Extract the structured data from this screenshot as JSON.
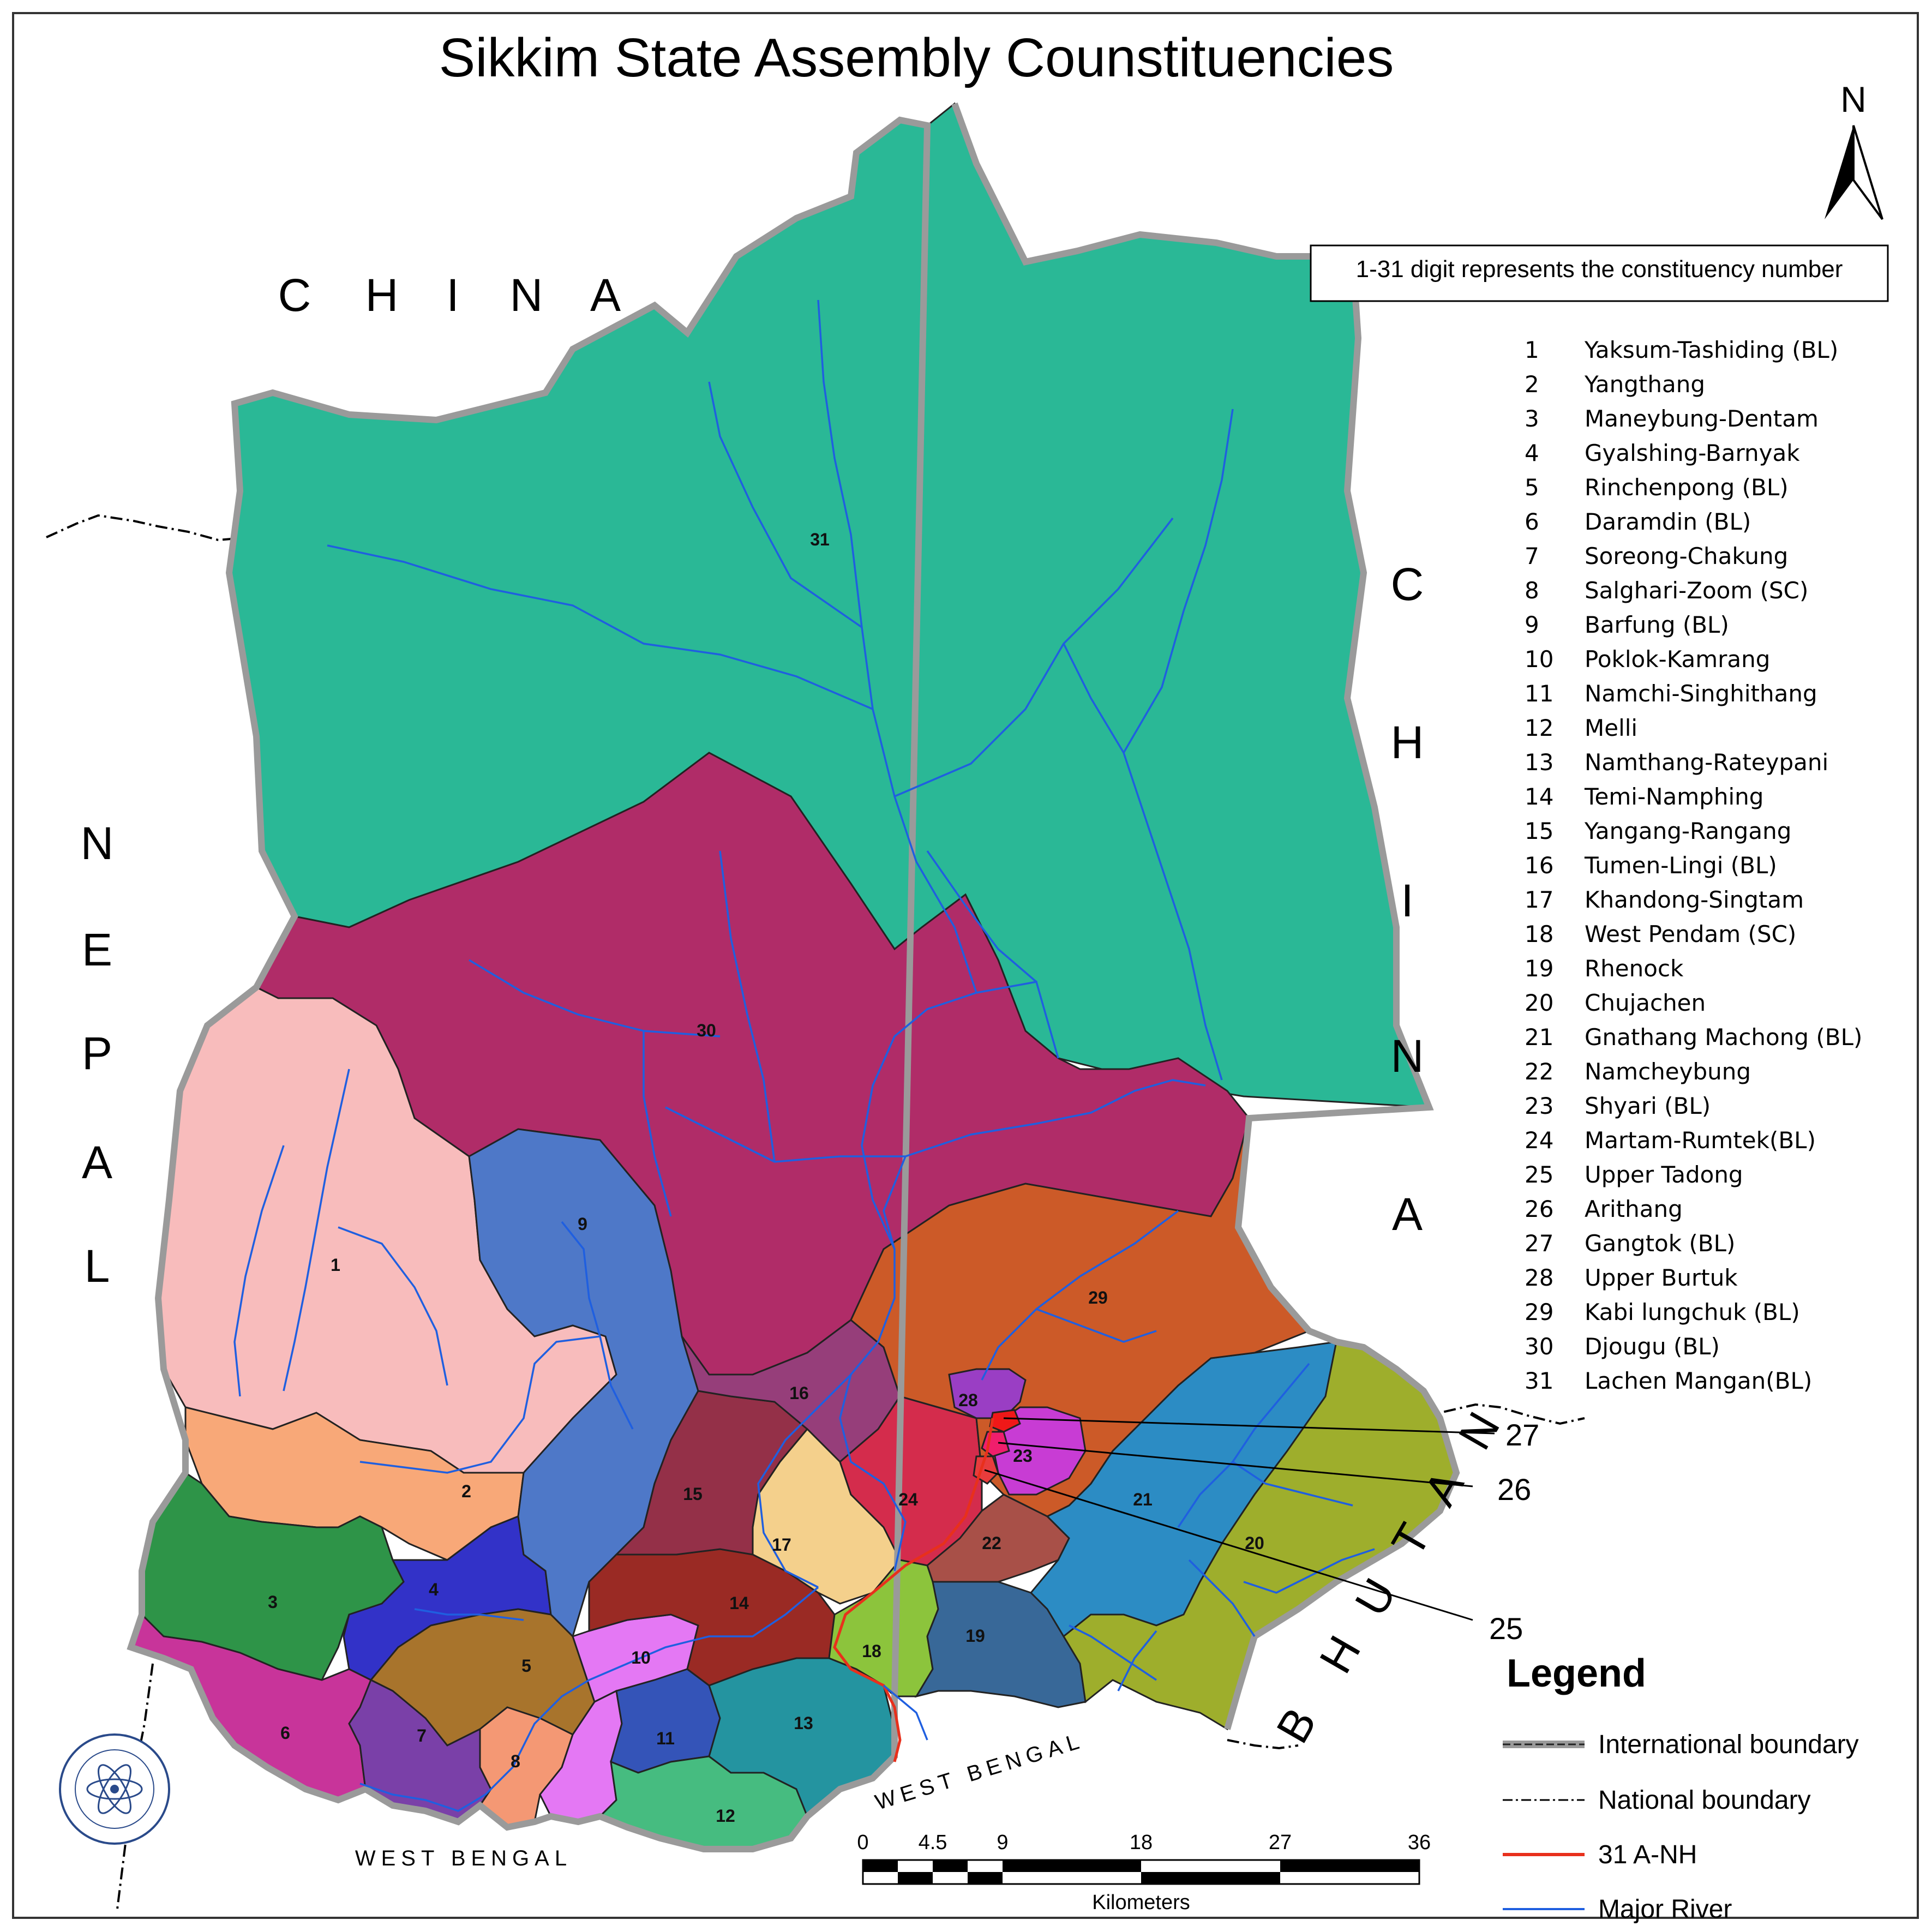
{
  "title": "Sikkim State Assembly Counstituencies",
  "note": "1-31 digit represents the constituency number",
  "north_label": "N",
  "countries": {
    "china_top": [
      "C",
      "H",
      "I",
      "N",
      "A"
    ],
    "china_right": [
      "C",
      "H",
      "I",
      "N",
      "A"
    ],
    "nepal": [
      "N",
      "E",
      "P",
      "A",
      "L"
    ],
    "bhutan": [
      "B",
      "H",
      "U",
      "T",
      "A",
      "N"
    ]
  },
  "west_bengal_labels": [
    "WEST BENGAL",
    "WEST BENGAL"
  ],
  "constituencies": [
    {
      "no": "1",
      "name": "Yaksum-Tashiding (BL)",
      "color": "#f8bcbc"
    },
    {
      "no": "2",
      "name": "Yangthang",
      "color": "#f8a878"
    },
    {
      "no": "3",
      "name": "Maneybung-Dentam",
      "color": "#2e9448"
    },
    {
      "no": "4",
      "name": "Gyalshing-Barnyak",
      "color": "#3232c8"
    },
    {
      "no": "5",
      "name": "Rinchenpong (BL)",
      "color": "#a8742c"
    },
    {
      "no": "6",
      "name": "Daramdin (BL)",
      "color": "#c8349a"
    },
    {
      "no": "7",
      "name": "Soreong-Chakung",
      "color": "#7a40a8"
    },
    {
      "no": "8",
      "name": "Salghari-Zoom (SC)",
      "color": "#f49874"
    },
    {
      "no": "9",
      "name": "Barfung (BL)",
      "color": "#4e78c8"
    },
    {
      "no": "10",
      "name": "Poklok-Kamrang",
      "color": "#e478f4"
    },
    {
      "no": "11",
      "name": "Namchi-Singhithang",
      "color": "#3454b8"
    },
    {
      "no": "12",
      "name": "Melli",
      "color": "#46bc80"
    },
    {
      "no": "13",
      "name": "Namthang-Rateypani",
      "color": "#2494a0"
    },
    {
      "no": "14",
      "name": "Temi-Namphing",
      "color": "#9a2a24"
    },
    {
      "no": "15",
      "name": "Yangang-Rangang",
      "color": "#943048"
    },
    {
      "no": "16",
      "name": "Tumen-Lingi (BL)",
      "color": "#963e7a"
    },
    {
      "no": "17",
      "name": "Khandong-Singtam",
      "color": "#f4d08c"
    },
    {
      "no": "18",
      "name": "West Pendam (SC)",
      "color": "#8cc43c"
    },
    {
      "no": "19",
      "name": "Rhenock",
      "color": "#386898"
    },
    {
      "no": "20",
      "name": "Chujachen",
      "color": "#9eae2c"
    },
    {
      "no": "21",
      "name": "Gnathang Machong (BL)",
      "color": "#2c8cc4"
    },
    {
      "no": "22",
      "name": "Namcheybung",
      "color": "#a85048"
    },
    {
      "no": "23",
      "name": "Shyari (BL)",
      "color": "#c83cd4"
    },
    {
      "no": "24",
      "name": "Martam-Rumtek(BL)",
      "color": "#d42c4c"
    },
    {
      "no": "25",
      "name": "Upper Tadong",
      "color": "#e83c3c"
    },
    {
      "no": "26",
      "name": "Arithang",
      "color": "#f01e6c"
    },
    {
      "no": "27",
      "name": "Gangtok (BL)",
      "color": "#f01818"
    },
    {
      "no": "28",
      "name": "Upper Burtuk",
      "color": "#9a3ec4"
    },
    {
      "no": "29",
      "name": "Kabi lungchuk (BL)",
      "color": "#cc5a28"
    },
    {
      "no": "30",
      "name": "Djougu (BL)",
      "color": "#b02c68"
    },
    {
      "no": "31",
      "name": "Lachen Mangan(BL)",
      "color": "#2ab896"
    }
  ],
  "callouts": [
    "27",
    "26",
    "25"
  ],
  "legend": {
    "heading": "Legend",
    "items": [
      {
        "label": "International boundary",
        "color": "#999999"
      },
      {
        "label": "National boundary",
        "color": "#000000"
      },
      {
        "label": "31 A-NH",
        "color": "#e8301c"
      },
      {
        "label": "Major River",
        "color": "#1f5fe0"
      }
    ]
  },
  "scale_bar": {
    "ticks": [
      "0",
      "4.5",
      "9",
      "18",
      "27",
      "36"
    ],
    "unit": "Kilometers"
  },
  "river_color": "#1f5fe0"
}
